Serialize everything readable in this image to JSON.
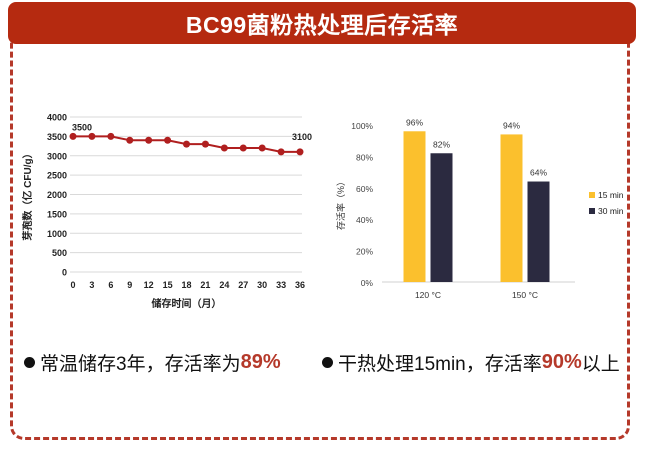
{
  "title": "BC99菌粉热处理后存活率",
  "colors": {
    "accent": "#b52a10",
    "line": "#b01f1f",
    "bar_15": "#fbc02d",
    "bar_30": "#2b2a40",
    "highlight": "#b5392a"
  },
  "chart_data": [
    {
      "type": "line",
      "title": "",
      "xlabel": "储存时间（月）",
      "ylabel": "芽孢数（亿 CFU/g）",
      "x": [
        0,
        3,
        6,
        9,
        12,
        15,
        18,
        21,
        24,
        27,
        30,
        33,
        36
      ],
      "values": [
        3500,
        3500,
        3500,
        3400,
        3400,
        3400,
        3300,
        3300,
        3200,
        3200,
        3200,
        3100,
        3100
      ],
      "yticks": [
        "0",
        "500",
        "1000",
        "1500",
        "2000",
        "2500",
        "3000",
        "3500",
        "4000"
      ],
      "xticks": [
        "0",
        "3",
        "6",
        "9",
        "12",
        "15",
        "18",
        "21",
        "24",
        "27",
        "30",
        "33",
        "36"
      ],
      "ylim": [
        0,
        4000
      ],
      "annotations": [
        {
          "x": 0,
          "label": "3500"
        },
        {
          "x": 36,
          "label": "3100"
        }
      ],
      "grid": true
    },
    {
      "type": "bar",
      "ylabel": "存活率（%）",
      "categories": [
        "120 °C",
        "150 °C"
      ],
      "series": [
        {
          "name": "15 min",
          "values": [
            96,
            94
          ],
          "labels": [
            "96%",
            "94%"
          ]
        },
        {
          "name": "30 min",
          "values": [
            82,
            64
          ],
          "labels": [
            "82%",
            "64%"
          ]
        }
      ],
      "yticks": [
        "0%",
        "20%",
        "40%",
        "60%",
        "80%",
        "100%"
      ],
      "ylim": [
        0,
        100
      ],
      "legend_position": "right",
      "grid": false
    }
  ],
  "bullets": [
    {
      "text": "常温储存3年，存活率为",
      "highlight": "89%",
      "suffix": ""
    },
    {
      "text": "干热处理15min，存活率",
      "highlight": "90%",
      "suffix": "以上"
    }
  ]
}
